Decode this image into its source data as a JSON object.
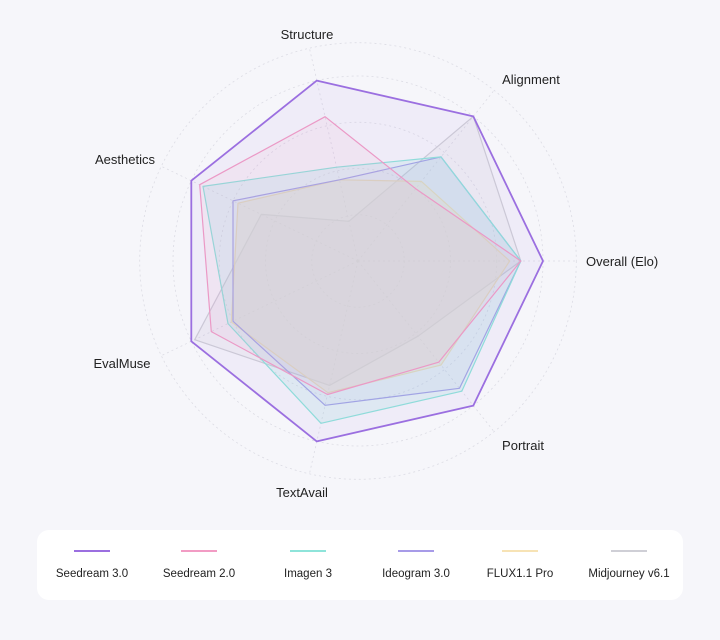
{
  "chart_data": {
    "type": "radar",
    "axes": [
      "Overall (Elo)",
      "Portrait",
      "TextAvail",
      "EvalMuse",
      "Aesthetics",
      "Structure",
      "Alignment"
    ],
    "range": [
      0,
      100
    ],
    "grid": true,
    "legend": "bottom",
    "series": [
      {
        "name": "Seedream 3.0",
        "color": "#9b6fe0",
        "fill": "rgba(155,111,224,0.07)",
        "values": [
          100,
          100,
          100,
          100,
          100,
          100,
          100
        ]
      },
      {
        "name": "Seedream 2.0",
        "color": "#f29cc4",
        "fill": "rgba(242,156,196,0.10)",
        "values": [
          88,
          50,
          80,
          95,
          88,
          74,
          70
        ]
      },
      {
        "name": "Imagen 3",
        "color": "#8ee4da",
        "fill": "rgba(142,228,218,0.18)",
        "values": [
          88,
          72,
          52,
          93,
          78,
          90,
          90
        ]
      },
      {
        "name": "Ideogram 3.0",
        "color": "#a79be8",
        "fill": "rgba(167,155,232,0.10)",
        "values": [
          88,
          72,
          45,
          75,
          75,
          80,
          88
        ]
      },
      {
        "name": "FLUX1.1 Pro",
        "color": "#f7e3b5",
        "fill": "rgba(250,238,210,0.55)",
        "values": [
          82,
          55,
          45,
          72,
          76,
          73,
          72
        ]
      },
      {
        "name": "Midjourney v6.1",
        "color": "#cfcfd6",
        "fill": "rgba(200,200,208,0.12)",
        "values": [
          88,
          100,
          22,
          58,
          98,
          69,
          52
        ]
      }
    ]
  }
}
